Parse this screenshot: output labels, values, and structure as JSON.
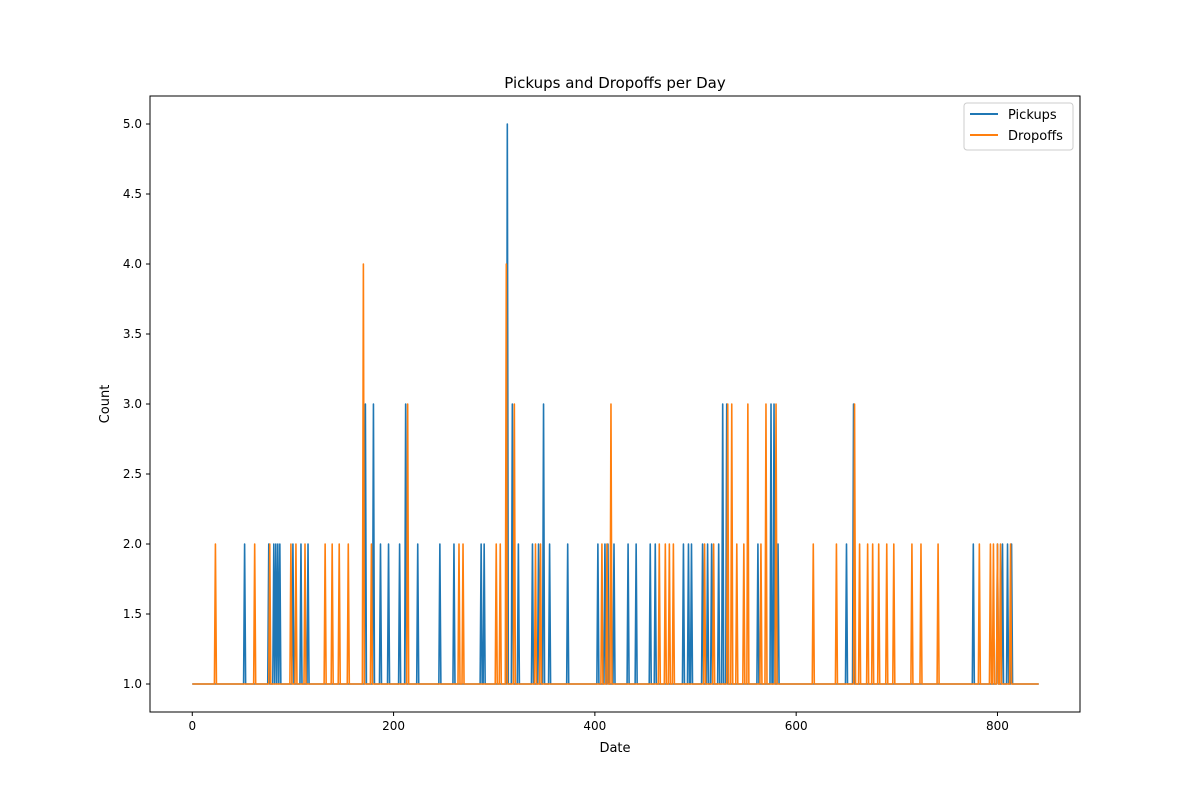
{
  "chart_data": {
    "type": "line",
    "title": "Pickups and Dropoffs per Day",
    "xlabel": "Date",
    "ylabel": "Count",
    "xlim": [
      -42,
      882
    ],
    "ylim": [
      0.8,
      5.2
    ],
    "x_ticks": [
      0,
      200,
      400,
      600,
      800
    ],
    "y_ticks": [
      1.0,
      1.5,
      2.0,
      2.5,
      3.0,
      3.5,
      4.0,
      4.5,
      5.0
    ],
    "grid": false,
    "legend_position": "top-right",
    "x_range": [
      0,
      841
    ],
    "baseline": 1,
    "series": [
      {
        "name": "Pickups",
        "color": "#1f77b4",
        "spikes": [
          [
            52,
            2
          ],
          [
            76,
            2
          ],
          [
            81,
            2
          ],
          [
            83,
            2
          ],
          [
            85,
            2
          ],
          [
            87,
            2
          ],
          [
            100,
            2
          ],
          [
            108,
            2
          ],
          [
            115,
            2
          ],
          [
            172,
            3
          ],
          [
            180,
            3
          ],
          [
            187,
            2
          ],
          [
            195,
            2
          ],
          [
            206,
            2
          ],
          [
            212,
            3
          ],
          [
            224,
            2
          ],
          [
            246,
            2
          ],
          [
            260,
            2
          ],
          [
            287,
            2
          ],
          [
            290,
            2
          ],
          [
            313,
            5
          ],
          [
            318,
            3
          ],
          [
            324,
            2
          ],
          [
            338,
            2
          ],
          [
            344,
            2
          ],
          [
            349,
            3
          ],
          [
            355,
            2
          ],
          [
            373,
            2
          ],
          [
            403,
            2
          ],
          [
            410,
            2
          ],
          [
            413,
            2
          ],
          [
            419,
            2
          ],
          [
            433,
            2
          ],
          [
            441,
            2
          ],
          [
            455,
            2
          ],
          [
            460,
            2
          ],
          [
            488,
            2
          ],
          [
            493,
            2
          ],
          [
            496,
            2
          ],
          [
            507,
            2
          ],
          [
            512,
            2
          ],
          [
            516,
            2
          ],
          [
            523,
            2
          ],
          [
            527,
            3
          ],
          [
            531,
            3
          ],
          [
            562,
            2
          ],
          [
            575,
            3
          ],
          [
            578,
            3
          ],
          [
            582,
            2
          ],
          [
            650,
            2
          ],
          [
            657,
            3
          ],
          [
            776,
            2
          ],
          [
            800,
            2
          ],
          [
            805,
            2
          ],
          [
            810,
            2
          ],
          [
            814,
            2
          ]
        ]
      },
      {
        "name": "Dropoffs",
        "color": "#ff7f0e",
        "spikes": [
          [
            23,
            2
          ],
          [
            62,
            2
          ],
          [
            77,
            2
          ],
          [
            98,
            2
          ],
          [
            103,
            2
          ],
          [
            112,
            2
          ],
          [
            132,
            2
          ],
          [
            139,
            2
          ],
          [
            146,
            2
          ],
          [
            155,
            2
          ],
          [
            170,
            4
          ],
          [
            178,
            2
          ],
          [
            214,
            3
          ],
          [
            265,
            2
          ],
          [
            269,
            2
          ],
          [
            302,
            2
          ],
          [
            306,
            2
          ],
          [
            312,
            4
          ],
          [
            320,
            3
          ],
          [
            341,
            2
          ],
          [
            346,
            2
          ],
          [
            407,
            2
          ],
          [
            412,
            2
          ],
          [
            416,
            3
          ],
          [
            464,
            2
          ],
          [
            470,
            2
          ],
          [
            474,
            2
          ],
          [
            478,
            2
          ],
          [
            509,
            2
          ],
          [
            518,
            2
          ],
          [
            532,
            3
          ],
          [
            536,
            3
          ],
          [
            541,
            2
          ],
          [
            548,
            2
          ],
          [
            552,
            3
          ],
          [
            565,
            2
          ],
          [
            570,
            3
          ],
          [
            580,
            3
          ],
          [
            617,
            2
          ],
          [
            640,
            2
          ],
          [
            658,
            3
          ],
          [
            663,
            2
          ],
          [
            671,
            2
          ],
          [
            676,
            2
          ],
          [
            682,
            2
          ],
          [
            690,
            2
          ],
          [
            697,
            2
          ],
          [
            715,
            2
          ],
          [
            724,
            2
          ],
          [
            741,
            2
          ],
          [
            782,
            2
          ],
          [
            793,
            2
          ],
          [
            796,
            2
          ],
          [
            800,
            2
          ],
          [
            803,
            2
          ],
          [
            813,
            2
          ]
        ]
      }
    ]
  }
}
